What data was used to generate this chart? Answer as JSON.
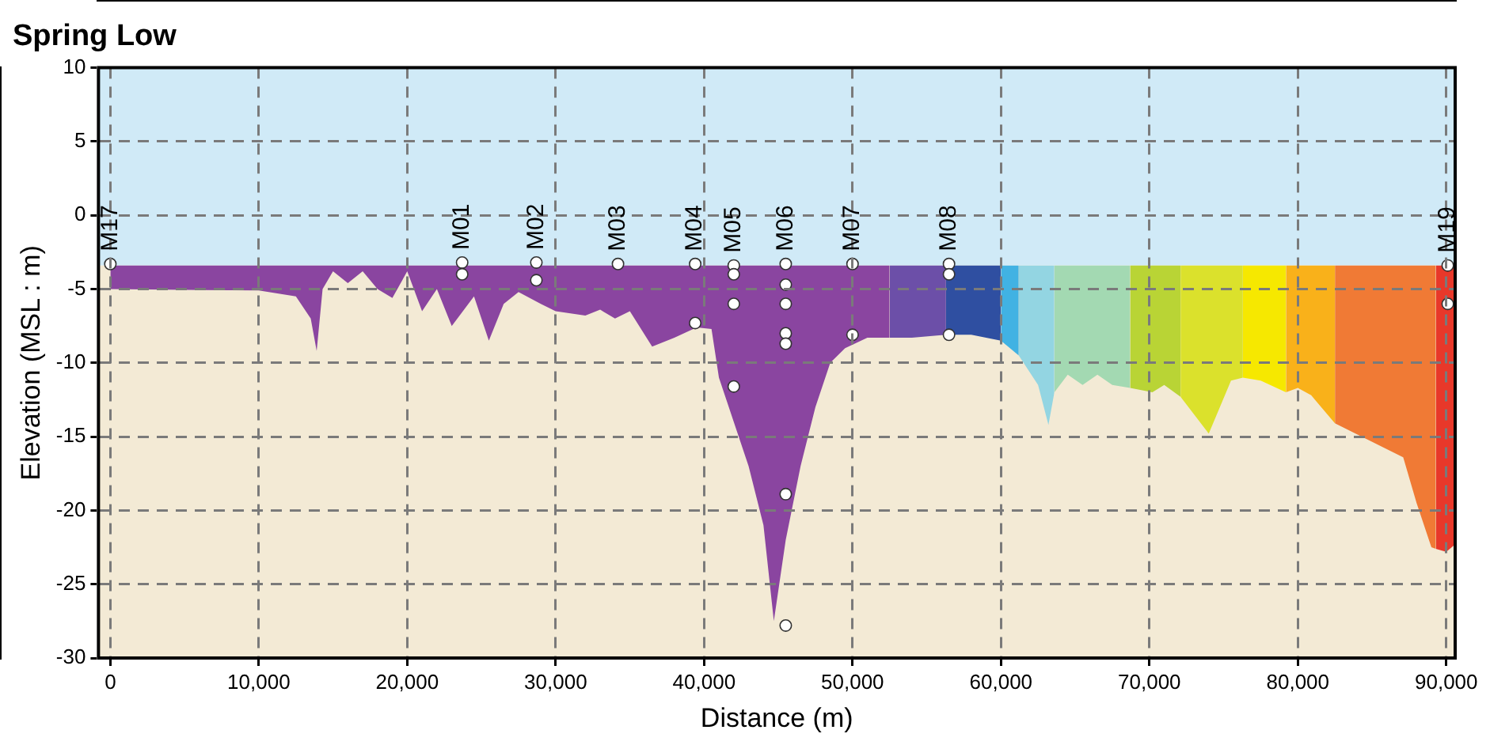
{
  "chart_data": {
    "type": "area",
    "title": "Spring Low",
    "xlabel": "Distance (m)",
    "ylabel": "Elevation (MSL : m)",
    "xlim": [
      -800,
      90600
    ],
    "ylim": [
      -30,
      10
    ],
    "xticks": [
      0,
      {
        "value": 10000,
        "label": "10,000"
      },
      {
        "value": 20000,
        "label": "20,000"
      },
      {
        "value": 30000,
        "label": "30,000"
      },
      {
        "value": 40000,
        "label": "40,000"
      },
      {
        "value": 50000,
        "label": "50,000"
      },
      {
        "value": 60000,
        "label": "60,000"
      },
      {
        "value": 70000,
        "label": "70,000"
      },
      {
        "value": 80000,
        "label": "80,000"
      },
      {
        "value": 90000,
        "label": "90,000"
      }
    ],
    "yticks": [
      -30,
      -25,
      -20,
      -15,
      -10,
      -5,
      0,
      5,
      10
    ],
    "grid": true,
    "legend": false,
    "bands": [
      {
        "axis": "y",
        "from": -3.4,
        "to": 10,
        "color": "#d0eaf7"
      },
      {
        "axis": "y",
        "from": -30,
        "to": -3.4,
        "color": "#f3ead5"
      }
    ],
    "series": [
      {
        "color": "#8a45a0",
        "x": [
          0,
          10000,
          12500,
          13500,
          13900,
          14300,
          15000,
          16000,
          17000,
          18000,
          19000,
          20000,
          21000,
          22000,
          23000,
          24500,
          25500,
          26500,
          27500,
          29000,
          30000,
          32000,
          33000,
          34000,
          35000,
          36500,
          38000,
          39500,
          40500,
          41000,
          41500,
          42000,
          43000,
          44000,
          44700,
          45500,
          46500,
          47500,
          48500,
          49500,
          51000,
          52500
        ],
        "values": [
          -5,
          -5.1,
          -5.5,
          -7,
          -9.2,
          -5,
          -3.8,
          -4.6,
          -3.8,
          -5,
          -5.6,
          -3.8,
          -6.5,
          -5,
          -7.5,
          -5.5,
          -8.5,
          -6,
          -5.2,
          -6,
          -6.5,
          -6.8,
          -6.4,
          -7,
          -6.5,
          -8.9,
          -8.3,
          -7.6,
          -7.7,
          -11,
          -12.5,
          -14,
          -17,
          -21,
          -27.5,
          -22,
          -17,
          -13,
          -10,
          -9,
          -8.3,
          -8.3
        ]
      },
      {
        "color": "#6c4fa8",
        "x": [
          52500,
          54000,
          56300
        ],
        "values": [
          -8.3,
          -8.3,
          -8.1
        ]
      },
      {
        "color": "#2f4fa1",
        "x": [
          56300,
          58000,
          60000
        ],
        "values": [
          -8.1,
          -8.1,
          -8.5
        ]
      },
      {
        "color": "#41b2e3",
        "x": [
          60000,
          61200
        ],
        "values": [
          -8.5,
          -9.5
        ]
      },
      {
        "color": "#93d5e2",
        "x": [
          61200,
          62500,
          63200,
          63600
        ],
        "values": [
          -9.5,
          -11.5,
          -14.2,
          -12
        ]
      },
      {
        "color": "#a3d9b2",
        "x": [
          63600,
          64500,
          65500,
          66500,
          67500,
          68700
        ],
        "values": [
          -12,
          -10.8,
          -11.5,
          -10.8,
          -11.5,
          -11.7
        ]
      },
      {
        "color": "#b9d435",
        "x": [
          68700,
          70200,
          71000,
          72100
        ],
        "values": [
          -11.7,
          -12,
          -11.5,
          -12.3
        ]
      },
      {
        "color": "#dbe12c",
        "x": [
          72100,
          74000,
          75500,
          76300
        ],
        "values": [
          -12.3,
          -14.8,
          -11.2,
          -11
        ]
      },
      {
        "color": "#f6e800",
        "x": [
          76300,
          77500,
          79200
        ],
        "values": [
          -11,
          -11.2,
          -12
        ]
      },
      {
        "color": "#f9b11a",
        "x": [
          79200,
          80000,
          80900,
          82500
        ],
        "values": [
          -12,
          -11.7,
          -12.2,
          -14.1
        ]
      },
      {
        "color": "#f07a35",
        "x": [
          82500,
          87100,
          88000,
          89000,
          89300
        ],
        "values": [
          -14.1,
          -16.4,
          -19.5,
          -22.5,
          -22.6
        ]
      },
      {
        "color": "#e8382a",
        "x": [
          89300,
          90000,
          90600
        ],
        "values": [
          -22.6,
          -22.8,
          -22.3
        ]
      },
      {
        "type": "scatter",
        "color": "#ffffff",
        "marker": "circle",
        "x": [
          0,
          23700,
          23700,
          28700,
          28700,
          34200,
          39400,
          39400,
          42000,
          42000,
          42000,
          42000,
          45500,
          45500,
          45500,
          45500,
          45500,
          45500,
          45500,
          50000,
          50000,
          56500,
          56500,
          56500,
          90100,
          90100
        ],
        "values": [
          -3.3,
          -3.2,
          -4,
          -3.2,
          -4.4,
          -3.3,
          -3.3,
          -7.3,
          -3.4,
          -4,
          -6,
          -11.6,
          -3.3,
          -4.7,
          -6,
          -8,
          -8.7,
          -18.9,
          -27.8,
          -3.3,
          -8.1,
          -3.3,
          -4,
          -8.1,
          -3.4,
          -6
        ]
      }
    ],
    "annotations": [
      {
        "text": "M17",
        "x": 0,
        "y": -3.3
      },
      {
        "text": "M01",
        "x": 23700,
        "y": -3.2
      },
      {
        "text": "M02",
        "x": 28700,
        "y": -3.2
      },
      {
        "text": "M03",
        "x": 34200,
        "y": -3.3
      },
      {
        "text": "M04",
        "x": 39400,
        "y": -3.3
      },
      {
        "text": "M05",
        "x": 42000,
        "y": -3.4
      },
      {
        "text": "M06",
        "x": 45500,
        "y": -3.3
      },
      {
        "text": "M07",
        "x": 50000,
        "y": -3.3
      },
      {
        "text": "M08",
        "x": 56500,
        "y": -3.3
      },
      {
        "text": "M19",
        "x": 90100,
        "y": -3.4
      }
    ]
  }
}
